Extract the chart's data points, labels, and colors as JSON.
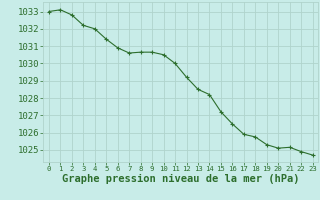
{
  "x": [
    0,
    1,
    2,
    3,
    4,
    5,
    6,
    7,
    8,
    9,
    10,
    11,
    12,
    13,
    14,
    15,
    16,
    17,
    18,
    19,
    20,
    21,
    22,
    23
  ],
  "y": [
    1033.0,
    1033.1,
    1032.8,
    1032.2,
    1032.0,
    1031.4,
    1030.9,
    1030.6,
    1030.65,
    1030.65,
    1030.5,
    1030.0,
    1029.2,
    1028.5,
    1028.2,
    1027.2,
    1026.5,
    1025.9,
    1025.75,
    1025.3,
    1025.1,
    1025.15,
    1024.9,
    1024.7
  ],
  "line_color": "#2d6e2d",
  "marker": "+",
  "bg_color": "#c8ece8",
  "grid_color": "#b0d4cc",
  "ylabel_values": [
    1025,
    1026,
    1027,
    1028,
    1029,
    1030,
    1031,
    1032,
    1033
  ],
  "ylim": [
    1024.3,
    1033.55
  ],
  "xlim": [
    -0.5,
    23.5
  ],
  "xlabel": "Graphe pression niveau de la mer (hPa)",
  "xlabel_color": "#2d6e2d",
  "tick_color": "#2d6e2d",
  "label_color": "#2d6e2d",
  "ytick_fontsize": 6.5,
  "xtick_fontsize": 5.2,
  "xlabel_fontsize": 7.5
}
